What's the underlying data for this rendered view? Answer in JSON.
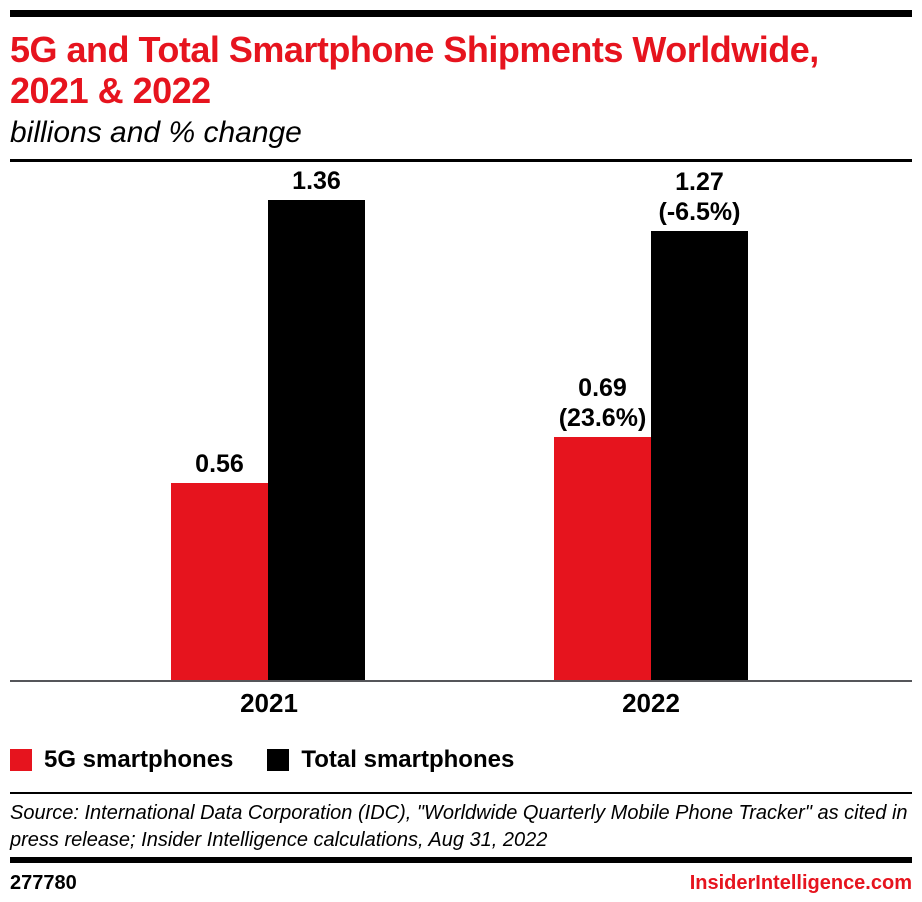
{
  "header": {
    "title": "5G and Total Smartphone Shipments Worldwide, 2021 & 2022",
    "subtitle": "billions and % change"
  },
  "chart_data": {
    "type": "bar",
    "title": "5G and Total Smartphone Shipments Worldwide, 2021 & 2022",
    "subtitle": "billions and % change",
    "unit": "billions",
    "categories": [
      "2021",
      "2022"
    ],
    "series": [
      {
        "name": "5G smartphones",
        "color": "#e6141e",
        "values": [
          0.56,
          0.69
        ],
        "labels": [
          "0.56",
          "0.69\n(23.6%)"
        ],
        "pct_change": [
          null,
          "23.6%"
        ]
      },
      {
        "name": "Total smartphones",
        "color": "#000000",
        "values": [
          1.36,
          1.27
        ],
        "labels": [
          "1.36",
          "1.27\n(-6.5%)"
        ],
        "pct_change": [
          null,
          "-6.5%"
        ]
      }
    ],
    "ylim": [
      0,
      1.47
    ],
    "grid": false,
    "y_axis_visible": false,
    "legend_position": "bottom-left",
    "accent_color": "#e6141e"
  },
  "footer": {
    "source": "Source: International Data Corporation (IDC), \"Worldwide Quarterly Mobile Phone Tracker\" as cited in press release; Insider Intelligence calculations, Aug 31, 2022",
    "chart_id": "277780",
    "site": "InsiderIntelligence.com"
  }
}
